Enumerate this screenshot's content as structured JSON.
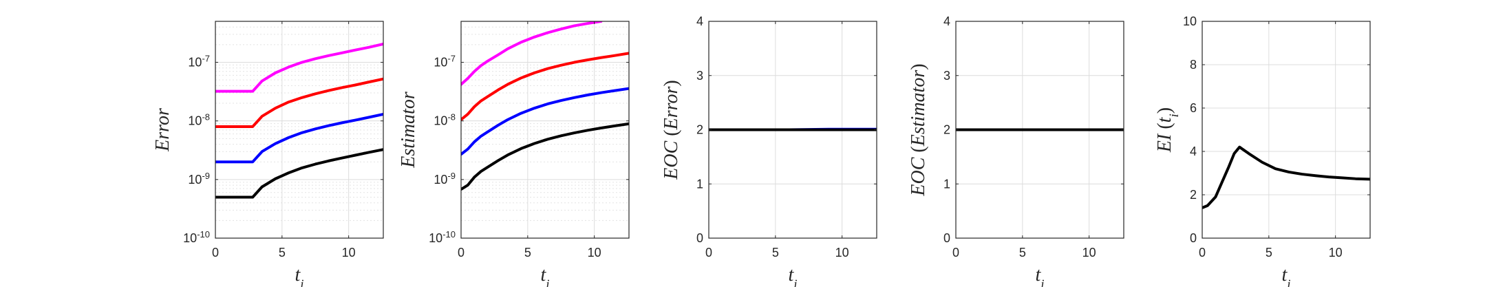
{
  "chart_data": [
    {
      "type": "line",
      "yscale": "log",
      "xlabel": "t_i",
      "ylabel": "Error",
      "xlim": [
        0,
        12.6
      ],
      "ylim": [
        1e-10,
        5e-07
      ],
      "x_ticks": [
        0,
        5,
        10
      ],
      "y_ticks": [
        1e-10,
        1e-09,
        1e-08,
        1e-07
      ],
      "y_tick_labels": [
        {
          "base": "10",
          "exp": "-10"
        },
        {
          "base": "10",
          "exp": "-9"
        },
        {
          "base": "10",
          "exp": "-8"
        },
        {
          "base": "10",
          "exp": "-7"
        }
      ],
      "grid": true,
      "minor_grid": true,
      "x": [
        0,
        1,
        2,
        2.8,
        3.5,
        4.5,
        5.5,
        6.5,
        7.5,
        8.5,
        9.5,
        10.5,
        11.5,
        12.6
      ],
      "series": [
        {
          "color": "#ff00ff",
          "values": [
            3.2e-08,
            3.2e-08,
            3.2e-08,
            3.2e-08,
            4.8e-08,
            6.6e-08,
            8.3e-08,
            1e-07,
            1.15e-07,
            1.3e-07,
            1.45e-07,
            1.62e-07,
            1.8e-07,
            2.05e-07
          ]
        },
        {
          "color": "#ff0000",
          "values": [
            8e-09,
            8e-09,
            8e-09,
            8e-09,
            1.2e-08,
            1.65e-08,
            2.1e-08,
            2.5e-08,
            2.9e-08,
            3.3e-08,
            3.7e-08,
            4.1e-08,
            4.6e-08,
            5.2e-08
          ]
        },
        {
          "color": "#0000ff",
          "values": [
            2e-09,
            2e-09,
            2e-09,
            2e-09,
            3e-09,
            4.1e-09,
            5.2e-09,
            6.3e-09,
            7.3e-09,
            8.3e-09,
            9.3e-09,
            1.03e-08,
            1.15e-08,
            1.3e-08
          ]
        },
        {
          "color": "#000000",
          "values": [
            5e-10,
            5e-10,
            5e-10,
            5e-10,
            7.5e-10,
            1.03e-09,
            1.3e-09,
            1.58e-09,
            1.83e-09,
            2.08e-09,
            2.33e-09,
            2.6e-09,
            2.9e-09,
            3.25e-09
          ]
        }
      ]
    },
    {
      "type": "line",
      "yscale": "log",
      "xlabel": "t_i",
      "ylabel": "Estimator",
      "xlim": [
        0,
        12.6
      ],
      "ylim": [
        1e-10,
        5e-07
      ],
      "x_ticks": [
        0,
        5,
        10
      ],
      "y_ticks": [
        1e-10,
        1e-09,
        1e-08,
        1e-07
      ],
      "y_tick_labels": [
        {
          "base": "10",
          "exp": "-10"
        },
        {
          "base": "10",
          "exp": "-9"
        },
        {
          "base": "10",
          "exp": "-8"
        },
        {
          "base": "10",
          "exp": "-7"
        }
      ],
      "grid": true,
      "minor_grid": true,
      "x": [
        0,
        0.5,
        1,
        1.5,
        2,
        2.8,
        3.5,
        4.5,
        5.5,
        6.5,
        7.5,
        8.5,
        9.5,
        10.5,
        11.5,
        12.6
      ],
      "series": [
        {
          "color": "#ff00ff",
          "values": [
            4.2e-08,
            5.3e-08,
            7e-08,
            8.8e-08,
            1.05e-07,
            1.35e-07,
            1.7e-07,
            2.2e-07,
            2.7e-07,
            3.2e-07,
            3.7e-07,
            4.2e-07,
            4.6e-07,
            5e-07,
            null,
            null
          ]
        },
        {
          "color": "#ff0000",
          "values": [
            1.05e-08,
            1.3e-08,
            1.75e-08,
            2.2e-08,
            2.6e-08,
            3.4e-08,
            4.2e-08,
            5.4e-08,
            6.6e-08,
            7.8e-08,
            8.9e-08,
            1e-07,
            1.1e-07,
            1.2e-07,
            1.3e-07,
            1.43e-07
          ]
        },
        {
          "color": "#0000ff",
          "values": [
            2.7e-09,
            3.3e-09,
            4.4e-09,
            5.5e-09,
            6.5e-09,
            8.5e-09,
            1.05e-08,
            1.35e-08,
            1.65e-08,
            1.95e-08,
            2.23e-08,
            2.5e-08,
            2.77e-08,
            3.03e-08,
            3.28e-08,
            3.57e-08
          ]
        },
        {
          "color": "#000000",
          "values": [
            6.8e-10,
            8e-10,
            1.1e-09,
            1.38e-09,
            1.63e-09,
            2.12e-09,
            2.62e-09,
            3.37e-09,
            4.12e-09,
            4.87e-09,
            5.57e-09,
            6.25e-09,
            6.92e-09,
            7.57e-09,
            8.2e-09,
            8.95e-09
          ]
        }
      ]
    },
    {
      "type": "line",
      "yscale": "linear",
      "xlabel": "t_i",
      "ylabel": "EOC(Error)",
      "ylabel_parts": {
        "name": "EOC",
        "arg": "Error"
      },
      "xlim": [
        0,
        12.6
      ],
      "ylim": [
        0,
        4
      ],
      "x_ticks": [
        0,
        5,
        10
      ],
      "y_ticks": [
        0,
        1,
        2,
        3,
        4
      ],
      "grid": true,
      "minor_grid": false,
      "x": [
        0,
        3,
        6,
        9,
        12.6
      ],
      "series": [
        {
          "color": "#0000ff",
          "values": [
            2.0,
            2.0,
            2.0,
            2.01,
            2.01
          ]
        },
        {
          "color": "#000000",
          "values": [
            2.0,
            2.0,
            2.0,
            2.0,
            2.0
          ]
        }
      ]
    },
    {
      "type": "line",
      "yscale": "linear",
      "xlabel": "t_i",
      "ylabel": "EOC(Estimator)",
      "ylabel_parts": {
        "name": "EOC",
        "arg": "Estimator"
      },
      "xlim": [
        0,
        12.6
      ],
      "ylim": [
        0,
        4
      ],
      "x_ticks": [
        0,
        5,
        10
      ],
      "y_ticks": [
        0,
        1,
        2,
        3,
        4
      ],
      "grid": true,
      "minor_grid": false,
      "x": [
        0,
        3,
        6,
        9,
        12.6
      ],
      "series": [
        {
          "color": "#000000",
          "values": [
            2.0,
            2.0,
            2.0,
            2.0,
            2.0
          ]
        }
      ]
    },
    {
      "type": "line",
      "yscale": "linear",
      "xlabel": "t_i",
      "ylabel": "EI(t_i)",
      "ylabel_parts": {
        "name": "EI",
        "arg": "t_i"
      },
      "xlim": [
        0,
        12.6
      ],
      "ylim": [
        0,
        10
      ],
      "x_ticks": [
        0,
        5,
        10
      ],
      "y_ticks": [
        0,
        2,
        4,
        6,
        8,
        10
      ],
      "grid": true,
      "minor_grid": false,
      "x": [
        0,
        0.4,
        1,
        1.5,
        2,
        2.4,
        2.8,
        3.5,
        4.5,
        5.5,
        6.5,
        7.5,
        8.5,
        9.5,
        10.5,
        11.5,
        12.6
      ],
      "series": [
        {
          "color": "#000000",
          "values": [
            1.4,
            1.5,
            1.9,
            2.6,
            3.3,
            3.9,
            4.2,
            3.9,
            3.5,
            3.2,
            3.05,
            2.95,
            2.88,
            2.82,
            2.78,
            2.74,
            2.72
          ]
        }
      ]
    }
  ]
}
